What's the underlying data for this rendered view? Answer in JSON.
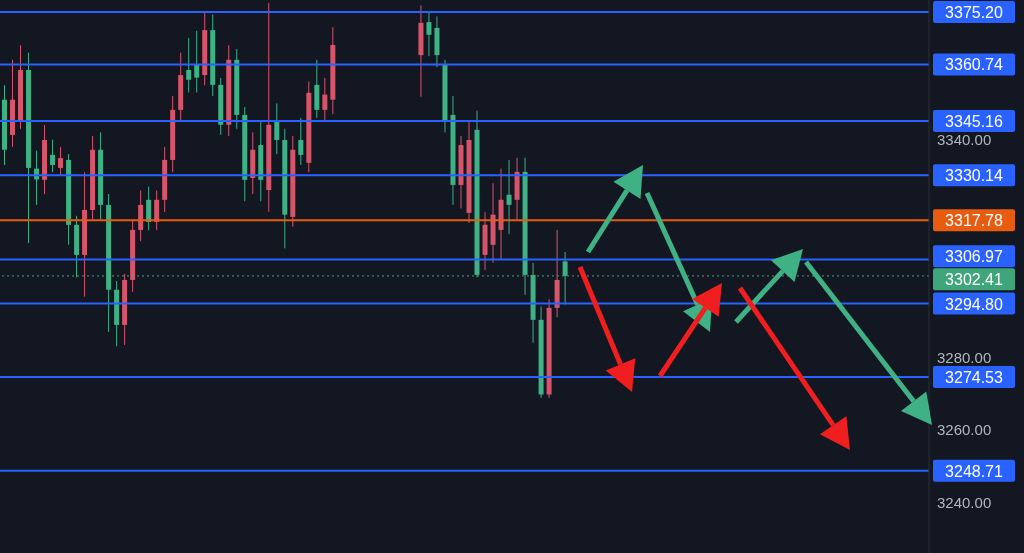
{
  "chart_data": {
    "type": "candlestick",
    "categories": [
      null,
      null,
      null,
      null,
      null,
      null,
      null,
      null,
      null,
      null,
      null,
      null,
      null,
      null,
      null,
      null,
      null,
      null,
      null,
      null,
      null,
      null,
      null,
      null,
      null,
      null,
      null,
      null,
      null,
      null,
      null,
      null,
      null,
      null,
      null,
      null,
      null,
      null,
      null,
      null,
      null,
      null,
      null,
      null,
      null,
      null,
      null,
      null,
      null,
      null,
      null,
      null,
      null,
      null,
      null,
      null,
      null,
      null,
      null,
      null,
      null,
      null,
      null,
      null,
      null,
      null,
      null,
      null,
      null,
      null,
      null,
      null,
      null,
      null,
      null,
      null,
      null,
      null,
      null,
      null,
      null,
      null,
      null,
      null,
      null,
      null,
      null,
      null,
      null,
      null,
      null,
      null,
      null,
      null,
      null,
      null,
      null,
      null,
      null,
      null,
      null,
      null,
      null,
      null,
      null,
      null,
      null,
      null,
      null,
      null,
      null,
      null,
      null,
      null,
      null,
      null
    ],
    "ohlc": [
      [
        3351.0,
        3355.0,
        3333.0,
        3337.2
      ],
      [
        3341.3,
        3362.0,
        3338.0,
        3351.0
      ],
      [
        3345.4,
        3366.0,
        3343.0,
        3359.2
      ],
      [
        3359.2,
        3364.0,
        3311.5,
        3332.2
      ],
      [
        3332.0,
        3337.0,
        3322.0,
        3329.0
      ],
      [
        3328.9,
        3344.0,
        3325.0,
        3339.9
      ],
      [
        3335.8,
        3340.0,
        3331.0,
        3333.0
      ],
      [
        3332.2,
        3338.0,
        3330.0,
        3334.9
      ],
      [
        3334.4,
        3336.0,
        3311.0,
        3316.5
      ],
      [
        3316.5,
        3319.0,
        3302.0,
        3308.2
      ],
      [
        3308.2,
        3331.0,
        3296.7,
        3320.6
      ],
      [
        3320.6,
        3341.0,
        3318.0,
        3337.2
      ],
      [
        3337.2,
        3342.0,
        3318.0,
        3322.0
      ],
      [
        3322.0,
        3325.0,
        3287.0,
        3298.6
      ],
      [
        3298.6,
        3301.0,
        3283.0,
        3288.9
      ],
      [
        3288.9,
        3303.0,
        3283.4,
        3301.3
      ],
      [
        3301.3,
        3318.0,
        3298.0,
        3315.1
      ],
      [
        3315.1,
        3326.0,
        3312.0,
        3322.0
      ],
      [
        3323.4,
        3327.0,
        3315.0,
        3317.3
      ],
      [
        3317.3,
        3326.0,
        3315.0,
        3323.4
      ],
      [
        3323.4,
        3338.0,
        3320.0,
        3334.4
      ],
      [
        3334.4,
        3352.0,
        3331.0,
        3348.2
      ],
      [
        3348.2,
        3364.0,
        3345.0,
        3357.8
      ],
      [
        3359.2,
        3368.0,
        3353.0,
        3356.5
      ],
      [
        3360.6,
        3370.0,
        3353.0,
        3357.1
      ],
      [
        3357.8,
        3374.9,
        3355.0,
        3370.2
      ],
      [
        3370.2,
        3374.5,
        3352.0,
        3355.1
      ],
      [
        3355.1,
        3357.0,
        3341.3,
        3344.1
      ],
      [
        3344.1,
        3366.0,
        3341.0,
        3362.0
      ],
      [
        3362.0,
        3365.0,
        3343.0,
        3346.8
      ],
      [
        3346.8,
        3349.0,
        3323.0,
        3328.9
      ],
      [
        3329.4,
        3342.0,
        3325.0,
        3337.2
      ],
      [
        3338.5,
        3345.0,
        3323.0,
        3328.9
      ],
      [
        3326.1,
        3377.7,
        3320.1,
        3344.1
      ],
      [
        3345.4,
        3350.0,
        3336.0,
        3339.9
      ],
      [
        3339.9,
        3343.0,
        3310.0,
        3319.3
      ],
      [
        3318.7,
        3341.0,
        3316.0,
        3337.2
      ],
      [
        3339.9,
        3346.0,
        3333.0,
        3335.8
      ],
      [
        3333.6,
        3356.0,
        3331.0,
        3352.9
      ],
      [
        3355.1,
        3362.0,
        3346.0,
        3348.2
      ],
      [
        3348.2,
        3357.0,
        3345.0,
        3352.4
      ],
      [
        3351.0,
        3371.0,
        3347.0,
        3366.1
      ],
      null,
      null,
      null,
      null,
      null,
      null,
      null,
      null,
      null,
      null,
      [
        3363.3,
        3377.0,
        3351.8,
        3372.2
      ],
      [
        3372.4,
        3375.0,
        3363.0,
        3368.9
      ],
      [
        3370.8,
        3374.0,
        3360.0,
        3363.3
      ],
      [
        3360.6,
        3362.0,
        3342.0,
        3345.4
      ],
      [
        3346.8,
        3352.0,
        3322.0,
        3327.5
      ],
      [
        3327.5,
        3341.0,
        3321.0,
        3338.5
      ],
      [
        3319.8,
        3345.0,
        3317.0,
        3339.9
      ],
      [
        3342.7,
        3348.0,
        3302.0,
        3302.7
      ],
      [
        3308.2,
        3320.0,
        3304.0,
        3316.5
      ],
      [
        3311.0,
        3328.0,
        3306.0,
        3319.3
      ],
      [
        3315.1,
        3332.0,
        3307.0,
        3323.4
      ],
      [
        3324.8,
        3334.4,
        3314.0,
        3322.0
      ],
      [
        3323.4,
        3335.0,
        3318.0,
        3331.1
      ],
      [
        3331.1,
        3335.0,
        3297.2,
        3302.7
      ],
      [
        3302.7,
        3306.0,
        3284.0,
        3290.3
      ],
      [
        3290.3,
        3294.0,
        3268.8,
        3269.7
      ],
      [
        3269.7,
        3296.0,
        3268.8,
        3293.6
      ],
      [
        3293.6,
        3315.1,
        3291.0,
        3301.3
      ],
      [
        3306.4,
        3309.0,
        3294.5,
        3302.41
      ],
      null,
      null,
      null,
      null,
      null,
      null,
      null,
      null,
      null,
      null,
      null,
      null,
      null,
      null,
      null,
      null,
      null,
      null,
      null,
      null,
      null,
      null,
      null,
      null,
      null,
      null,
      null,
      null,
      null,
      null,
      null,
      null,
      null,
      null,
      null,
      null,
      null,
      null,
      null,
      null,
      null,
      null,
      null,
      null,
      null
    ],
    "colors": [
      "#3fb185",
      "#d5566b",
      "#d5566b",
      "#3fb185",
      "#3fb185",
      "#d5566b",
      "#3fb185",
      "#d5566b",
      "#3fb185",
      "#3fb185",
      "#d5566b",
      "#d5566b",
      "#3fb185",
      "#3fb185",
      "#3fb185",
      "#d5566b",
      "#d5566b",
      "#d5566b",
      "#3fb185",
      "#d5566b",
      "#d5566b",
      "#d5566b",
      "#d5566b",
      "#3fb185",
      "#3fb185",
      "#d5566b",
      "#3fb185",
      "#3fb185",
      "#d5566b",
      "#3fb185",
      "#3fb185",
      "#d5566b",
      "#3fb185",
      "#d5566b",
      "#3fb185",
      "#3fb185",
      "#d5566b",
      "#3fb185",
      "#d5566b",
      "#3fb185",
      "#d5566b",
      "#d5566b",
      null,
      null,
      null,
      null,
      null,
      null,
      null,
      null,
      null,
      null,
      "#d5566b",
      "#3fb185",
      "#3fb185",
      "#3fb185",
      "#3fb185",
      "#d5566b",
      "#d5566b",
      "#3fb185",
      "#d5566b",
      "#d5566b",
      "#d5566b",
      "#3fb185",
      "#d5566b",
      "#3fb185",
      "#3fb185",
      "#3fb185",
      "#d5566b",
      "#d5566b",
      "#3fb185",
      null,
      null,
      null,
      null,
      null,
      null,
      null,
      null,
      null,
      null,
      null,
      null,
      null,
      null,
      null,
      null,
      null,
      null,
      null,
      null,
      null,
      null,
      null,
      null,
      null,
      null,
      null,
      null,
      null,
      null,
      null,
      null,
      null,
      null,
      null,
      null,
      null,
      null,
      null,
      null,
      null,
      null,
      null,
      null,
      null
    ],
    "ylim": [
      3226,
      3378.5
    ],
    "yticks": [
      {
        "value": 3240,
        "label": "3240.00"
      },
      {
        "value": 3260,
        "label": "3260.00"
      },
      {
        "value": 3280,
        "label": "3280.00"
      },
      {
        "value": 3340,
        "label": "3340.00"
      }
    ],
    "tick_labels": "y",
    "ref_lines": [
      {
        "axis": "y",
        "value": 3375.2,
        "label": "3375.20",
        "color": "#2962ff"
      },
      {
        "axis": "y",
        "value": 3360.74,
        "label": "3360.74",
        "color": "#2962ff"
      },
      {
        "axis": "y",
        "value": 3345.16,
        "label": "3345.16",
        "color": "#2962ff"
      },
      {
        "axis": "y",
        "value": 3330.14,
        "label": "3330.14",
        "color": "#2962ff"
      },
      {
        "axis": "y",
        "value": 3317.78,
        "label": "3317.78",
        "color": "#e65c10"
      },
      {
        "axis": "y",
        "value": 3306.97,
        "label": "3306.97",
        "color": "#2962ff"
      },
      {
        "axis": "y",
        "value": 3302.41,
        "label": "3302.41",
        "color": "#3fa57a",
        "line_style": "dotted"
      },
      {
        "axis": "y",
        "value": 3294.8,
        "label": "3294.80",
        "color": "#2962ff"
      },
      {
        "axis": "y",
        "value": 3274.53,
        "label": "3274.53",
        "color": "#2962ff"
      },
      {
        "axis": "y",
        "value": 3248.71,
        "label": "3248.71",
        "color": "#2962ff"
      }
    ]
  }
}
